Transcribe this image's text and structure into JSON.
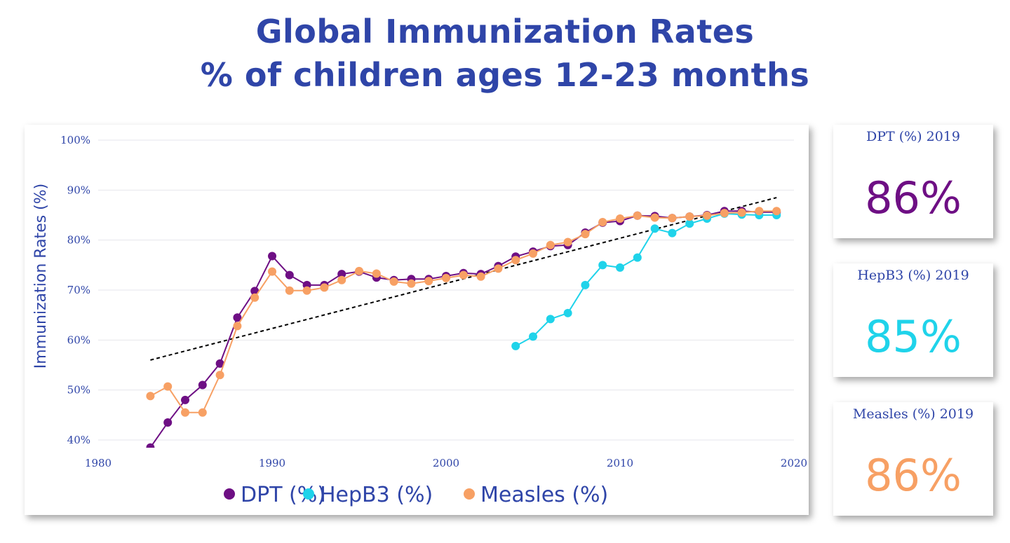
{
  "title_line1": "Global Immunization Rates",
  "title_line2": "% of children ages 12-23 months",
  "kpis": [
    {
      "label": "DPT (%) 2019",
      "value": "86%",
      "color": "#6e0f84"
    },
    {
      "label": "HepB3 (%) 2019",
      "value": "85%",
      "color": "#1fd3ea"
    },
    {
      "label": "Measles (%) 2019",
      "value": "86%",
      "color": "#f7a064"
    }
  ],
  "chart_data": {
    "type": "line",
    "ylabel": "Immunization Rates (%)",
    "xlim": [
      1980,
      2020
    ],
    "ylim": [
      39,
      101
    ],
    "x_ticks": [
      1980,
      1990,
      2000,
      2010,
      2020
    ],
    "x_tick_labels": [
      "1980",
      "1990",
      "2000",
      "2010",
      "2020"
    ],
    "y_ticks": [
      40,
      50,
      60,
      70,
      80,
      90,
      100
    ],
    "y_tick_labels": [
      "40%",
      "50%",
      "60%",
      "70%",
      "80%",
      "90%",
      "100%"
    ],
    "grid": true,
    "legend_placement": "bottom-center",
    "series": [
      {
        "name": "DPT (%)",
        "color": "#6e0f84",
        "x": [
          1983,
          1984,
          1985,
          1986,
          1987,
          1988,
          1989,
          1990,
          1991,
          1992,
          1993,
          1994,
          1995,
          1996,
          1997,
          1998,
          1999,
          2000,
          2001,
          2002,
          2003,
          2004,
          2005,
          2006,
          2007,
          2008,
          2009,
          2010,
          2011,
          2012,
          2013,
          2014,
          2015,
          2016,
          2017,
          2018,
          2019
        ],
        "y": [
          38.5,
          43.5,
          48,
          51,
          55.3,
          64.5,
          69.8,
          76.8,
          73,
          71,
          71,
          73.2,
          73.7,
          72.5,
          72,
          72.2,
          72.2,
          72.8,
          73.4,
          73.2,
          74.8,
          76.7,
          77.7,
          78.8,
          79,
          81.5,
          83.5,
          83.8,
          84.9,
          84.8,
          84.4,
          84.7,
          85,
          85.8,
          85.8,
          85.6,
          85.6
        ]
      },
      {
        "name": "HepB3 (%)",
        "color": "#1fd3ea",
        "x": [
          2004,
          2005,
          2006,
          2007,
          2008,
          2009,
          2010,
          2011,
          2012,
          2013,
          2014,
          2015,
          2016,
          2017,
          2018,
          2019
        ],
        "y": [
          58.8,
          60.7,
          64.2,
          65.4,
          71,
          75,
          74.5,
          76.5,
          82.3,
          81.4,
          83.3,
          84.3,
          85.3,
          85.1,
          85,
          85
        ]
      },
      {
        "name": "Measles (%)",
        "color": "#f7a064",
        "x": [
          1983,
          1984,
          1985,
          1986,
          1987,
          1988,
          1989,
          1990,
          1991,
          1992,
          1993,
          1994,
          1995,
          1996,
          1997,
          1998,
          1999,
          2000,
          2001,
          2002,
          2003,
          2004,
          2005,
          2006,
          2007,
          2008,
          2009,
          2010,
          2011,
          2012,
          2013,
          2014,
          2015,
          2016,
          2017,
          2018,
          2019
        ],
        "y": [
          48.8,
          50.7,
          45.5,
          45.5,
          53,
          62.8,
          68.5,
          73.7,
          69.9,
          69.9,
          70.5,
          72,
          73.8,
          73.3,
          71.7,
          71.3,
          71.8,
          72.4,
          73,
          72.7,
          74.3,
          76,
          77.3,
          79,
          79.6,
          81.2,
          83.6,
          84.3,
          84.9,
          84.5,
          84.4,
          84.7,
          84.9,
          85.4,
          85.5,
          85.8,
          85.8
        ]
      }
    ],
    "trendline": {
      "x": [
        1983,
        2019
      ],
      "y": [
        56,
        88.5
      ],
      "color": "#000000"
    }
  }
}
